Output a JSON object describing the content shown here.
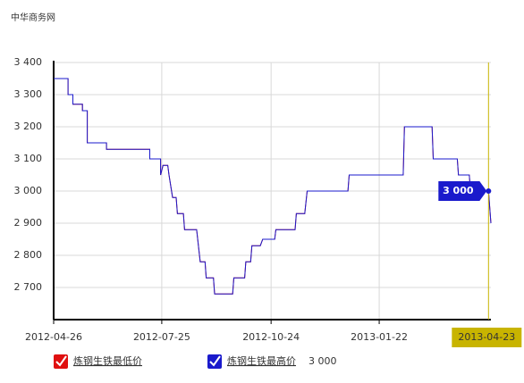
{
  "chart_data": {
    "type": "line",
    "title": "中华商务网",
    "x": [
      "2012-04-26",
      "2012-05-08",
      "2012-05-08",
      "2012-05-12",
      "2012-05-12",
      "2012-05-20",
      "2012-05-20",
      "2012-05-24",
      "2012-05-24",
      "2012-06-09",
      "2012-06-09",
      "2012-07-15",
      "2012-07-15",
      "2012-07-24",
      "2012-07-24",
      "2012-07-26",
      "2012-07-30",
      "2012-07-31",
      "2012-08-03",
      "2012-08-06",
      "2012-08-07",
      "2012-08-12",
      "2012-08-13",
      "2012-08-23",
      "2012-08-26",
      "2012-08-30",
      "2012-08-31",
      "2012-09-06",
      "2012-09-07",
      "2012-09-22",
      "2012-09-23",
      "2012-10-02",
      "2012-10-03",
      "2012-10-07",
      "2012-10-08",
      "2012-10-15",
      "2012-10-17",
      "2012-10-27",
      "2012-10-28",
      "2012-11-13",
      "2012-11-14",
      "2012-11-21",
      "2012-11-23",
      "2012-12-27",
      "2012-12-28",
      "2013-02-11",
      "2013-02-12",
      "2013-03-07",
      "2013-03-08",
      "2013-03-28",
      "2013-03-29",
      "2013-04-07",
      "2013-04-08",
      "2013-04-23",
      "2013-04-25"
    ],
    "series": [
      {
        "name": "炼钢生铁最低价",
        "color": "#e01010",
        "values": [
          3350,
          3350,
          3300,
          3300,
          3270,
          3270,
          3250,
          3250,
          3150,
          3150,
          3130,
          3130,
          3100,
          3100,
          3050,
          3080,
          3080,
          3050,
          2980,
          2980,
          2930,
          2930,
          2880,
          2880,
          2780,
          2780,
          2730,
          2730,
          2680,
          2680,
          2730,
          2730,
          2780,
          2780,
          2830,
          2830,
          2850,
          2850,
          2880,
          2880,
          2930,
          2930,
          3000,
          3000,
          3050,
          3050,
          3200,
          3200,
          3100,
          3100,
          3050,
          3050,
          3000,
          3000,
          2900
        ]
      },
      {
        "name": "炼钢生铁最高价",
        "color": "#1a1acc",
        "values": [
          3350,
          3350,
          3300,
          3300,
          3270,
          3270,
          3250,
          3250,
          3150,
          3150,
          3130,
          3130,
          3100,
          3100,
          3050,
          3080,
          3080,
          3050,
          2980,
          2980,
          2930,
          2930,
          2880,
          2880,
          2780,
          2780,
          2730,
          2730,
          2680,
          2680,
          2730,
          2730,
          2780,
          2780,
          2830,
          2830,
          2850,
          2850,
          2880,
          2880,
          2930,
          2930,
          3000,
          3000,
          3050,
          3050,
          3200,
          3200,
          3100,
          3100,
          3050,
          3050,
          3000,
          3000,
          2900
        ],
        "value_labels": [
          null,
          null,
          null,
          null,
          null,
          null,
          null,
          null,
          null,
          null,
          null,
          null,
          null,
          null,
          null,
          null,
          null,
          null,
          null,
          null,
          null,
          null,
          null,
          null,
          null,
          null,
          null,
          null,
          null,
          null,
          null,
          null,
          null,
          null,
          null,
          null,
          null,
          null,
          null,
          null,
          null,
          null,
          null,
          null,
          null,
          null,
          null,
          null,
          null,
          null,
          null,
          null,
          null,
          "3 000",
          null
        ]
      }
    ],
    "xlim": [
      "2012-04-26",
      "2013-04-25"
    ],
    "xticks": [
      "2012-04-26",
      "2012-07-25",
      "2012-10-24",
      "2013-01-22"
    ],
    "ylim": [
      2600,
      3400
    ],
    "yticks": [
      {
        "value": 2700,
        "label": "2 700"
      },
      {
        "value": 2800,
        "label": "2 800"
      },
      {
        "value": 2900,
        "label": "2 900"
      },
      {
        "value": 3000,
        "label": "3 000"
      },
      {
        "value": 3100,
        "label": "3 100"
      },
      {
        "value": 3200,
        "label": "3 200"
      },
      {
        "value": 3300,
        "label": "3 300"
      },
      {
        "value": 3400,
        "label": "3 400"
      }
    ],
    "grid": true
  }
}
